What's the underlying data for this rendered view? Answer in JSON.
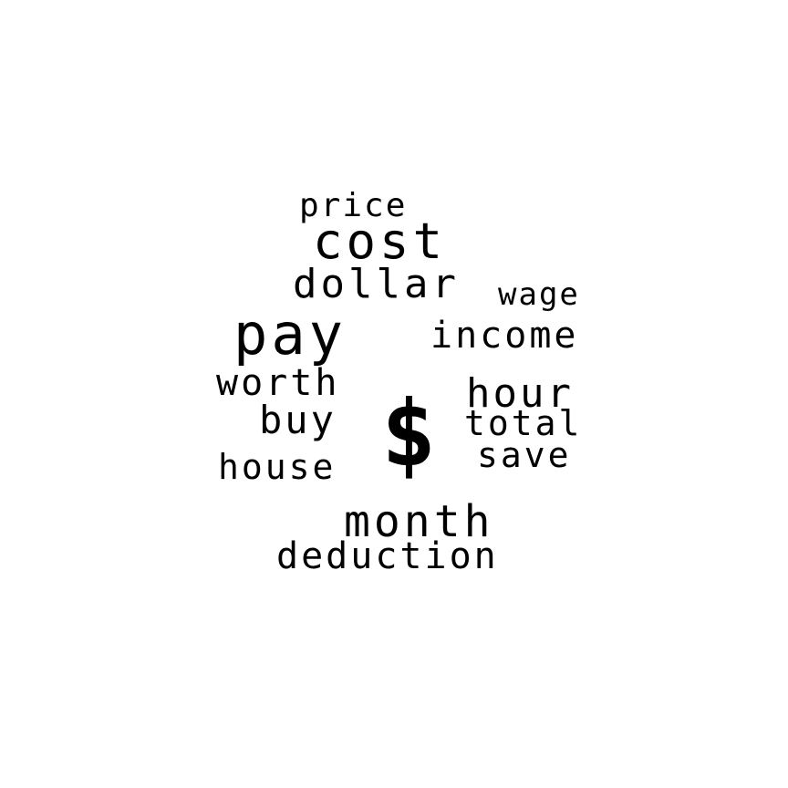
{
  "symbol": "$",
  "words": {
    "price": "price",
    "cost": "cost",
    "dollar": "dollar",
    "wage": "wage",
    "pay": "pay",
    "income": "income",
    "worth": "worth",
    "hour": "hour",
    "buy": "buy",
    "total": "total",
    "save": "save",
    "house": "house",
    "month": "month",
    "deduction": "deduction"
  },
  "colors": {
    "background": "#ffffff",
    "text": "#000000"
  }
}
